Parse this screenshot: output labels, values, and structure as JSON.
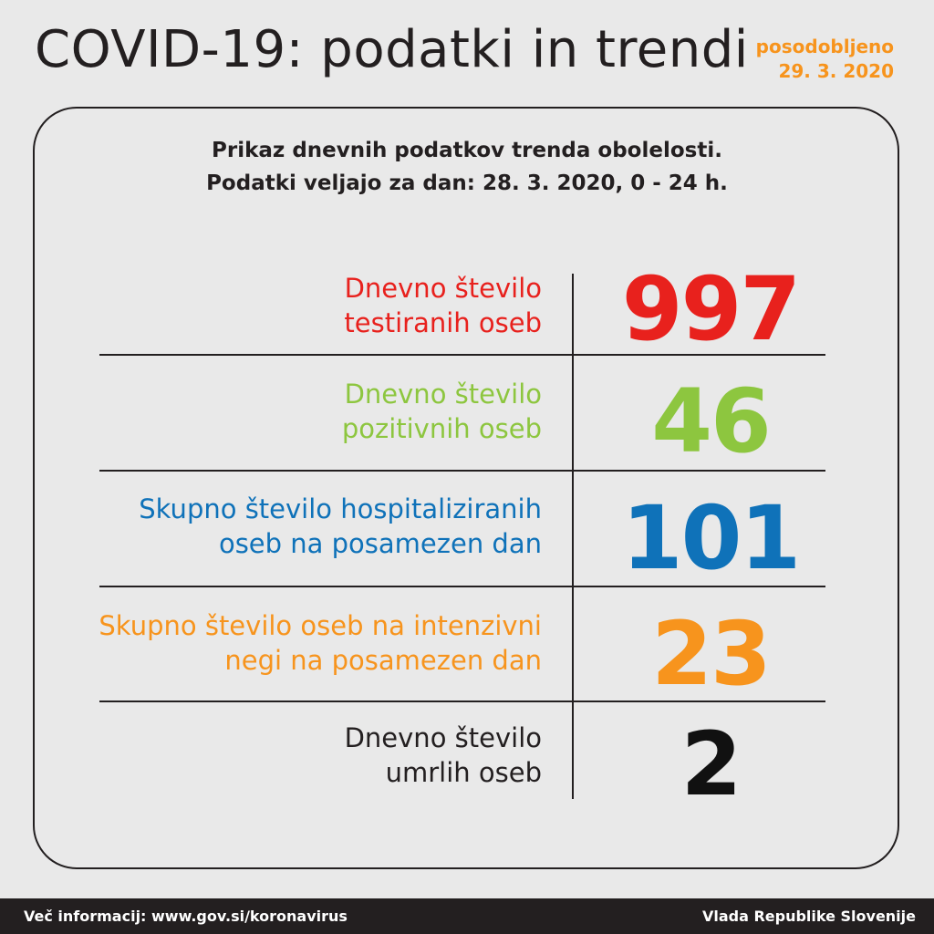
{
  "header": {
    "title": "COVID-19: podatki in trendi",
    "updated_label": "posodobljeno",
    "updated_date": "29. 3. 2020"
  },
  "panel": {
    "subtitle_line1": "Prikaz dnevnih podatkov trenda obolelosti.",
    "subtitle_line2": "Podatki veljajo za dan: 28. 3. 2020, 0 - 24 h."
  },
  "rows": [
    {
      "label_line1": "Dnevno število",
      "label_line2": "testiranih oseb",
      "value": "997",
      "color": "#e8211d"
    },
    {
      "label_line1": "Dnevno število",
      "label_line2": "pozitivnih oseb",
      "value": "46",
      "color": "#8dc63f"
    },
    {
      "label_line1": "Skupno število hospitaliziranih",
      "label_line2": "oseb na posamezen dan",
      "value": "101",
      "color": "#0f72b9"
    },
    {
      "label_line1": "Skupno število oseb na intenzivni",
      "label_line2": "negi na posamezen dan",
      "value": "23",
      "color": "#f7941d"
    },
    {
      "label_line1": "Dnevno število",
      "label_line2": "umrlih oseb",
      "value": "2",
      "color": "#111111"
    }
  ],
  "footer": {
    "left_text": "Več informacij: www.gov.si/koronavirus",
    "right_text": "Vlada Republike Slovenije"
  }
}
